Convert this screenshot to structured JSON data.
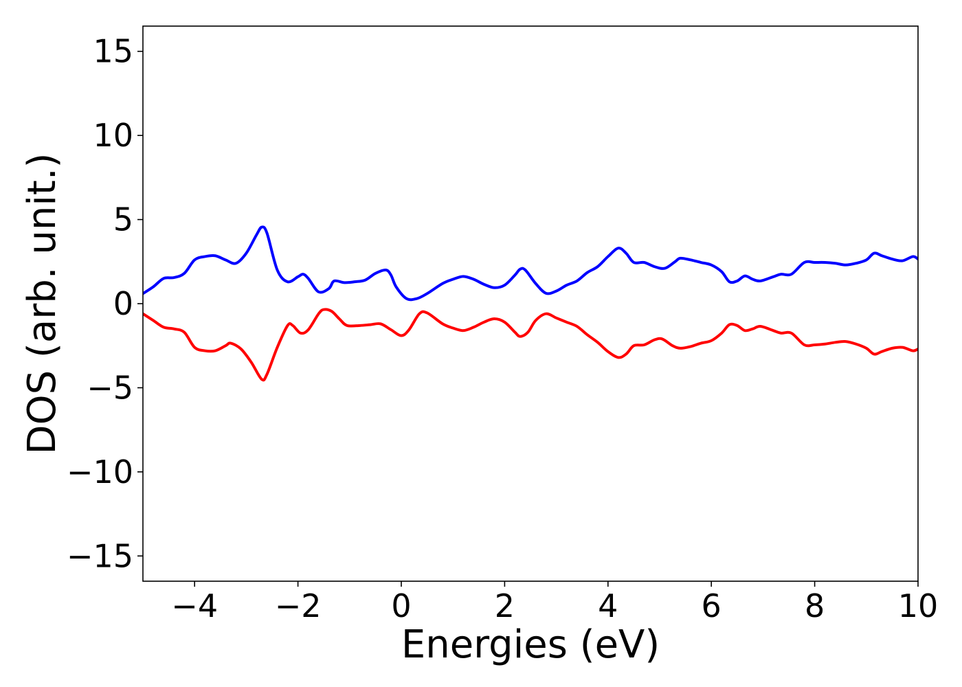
{
  "chart_data": {
    "type": "line",
    "title": "",
    "xlabel": "Energies (eV)",
    "ylabel": "DOS (arb. unit.)",
    "xlim": [
      -5,
      10
    ],
    "ylim": [
      -16.5,
      16.5
    ],
    "xticks": [
      -4,
      -2,
      0,
      2,
      4,
      6,
      8,
      10
    ],
    "xtick_labels": [
      "−4",
      "−2",
      "0",
      "2",
      "4",
      "6",
      "8",
      "10"
    ],
    "yticks": [
      15,
      10,
      5,
      0,
      -5,
      -10,
      -15
    ],
    "ytick_labels": [
      "15",
      "10",
      "5",
      "0",
      "−5",
      "−10",
      "−15"
    ],
    "grid": false,
    "legend": "none",
    "series": [
      {
        "color": "#0000ff",
        "points": [
          [
            -5.0,
            0.6
          ],
          [
            -4.8,
            1.0
          ],
          [
            -4.6,
            1.5
          ],
          [
            -4.4,
            1.55
          ],
          [
            -4.2,
            1.8
          ],
          [
            -4.0,
            2.6
          ],
          [
            -3.8,
            2.8
          ],
          [
            -3.6,
            2.85
          ],
          [
            -3.4,
            2.6
          ],
          [
            -3.2,
            2.4
          ],
          [
            -3.0,
            3.0
          ],
          [
            -2.8,
            4.1
          ],
          [
            -2.7,
            4.55
          ],
          [
            -2.6,
            4.2
          ],
          [
            -2.4,
            2.0
          ],
          [
            -2.2,
            1.3
          ],
          [
            -2.0,
            1.6
          ],
          [
            -1.9,
            1.75
          ],
          [
            -1.8,
            1.5
          ],
          [
            -1.6,
            0.7
          ],
          [
            -1.4,
            0.9
          ],
          [
            -1.3,
            1.35
          ],
          [
            -1.1,
            1.25
          ],
          [
            -0.9,
            1.3
          ],
          [
            -0.7,
            1.4
          ],
          [
            -0.5,
            1.8
          ],
          [
            -0.3,
            2.0
          ],
          [
            -0.2,
            1.7
          ],
          [
            -0.1,
            1.0
          ],
          [
            0.1,
            0.3
          ],
          [
            0.3,
            0.3
          ],
          [
            0.5,
            0.6
          ],
          [
            0.8,
            1.2
          ],
          [
            1.0,
            1.45
          ],
          [
            1.2,
            1.62
          ],
          [
            1.4,
            1.45
          ],
          [
            1.6,
            1.15
          ],
          [
            1.8,
            0.95
          ],
          [
            2.0,
            1.1
          ],
          [
            2.2,
            1.7
          ],
          [
            2.3,
            2.05
          ],
          [
            2.4,
            2.0
          ],
          [
            2.6,
            1.2
          ],
          [
            2.8,
            0.62
          ],
          [
            3.0,
            0.75
          ],
          [
            3.2,
            1.1
          ],
          [
            3.4,
            1.35
          ],
          [
            3.6,
            1.85
          ],
          [
            3.8,
            2.2
          ],
          [
            4.0,
            2.8
          ],
          [
            4.2,
            3.3
          ],
          [
            4.35,
            3.0
          ],
          [
            4.5,
            2.45
          ],
          [
            4.7,
            2.45
          ],
          [
            4.9,
            2.2
          ],
          [
            5.1,
            2.1
          ],
          [
            5.3,
            2.5
          ],
          [
            5.4,
            2.7
          ],
          [
            5.6,
            2.6
          ],
          [
            5.8,
            2.45
          ],
          [
            6.0,
            2.3
          ],
          [
            6.2,
            1.9
          ],
          [
            6.35,
            1.3
          ],
          [
            6.5,
            1.35
          ],
          [
            6.65,
            1.65
          ],
          [
            6.8,
            1.45
          ],
          [
            6.95,
            1.35
          ],
          [
            7.2,
            1.6
          ],
          [
            7.35,
            1.75
          ],
          [
            7.55,
            1.75
          ],
          [
            7.8,
            2.45
          ],
          [
            8.0,
            2.45
          ],
          [
            8.2,
            2.45
          ],
          [
            8.4,
            2.4
          ],
          [
            8.6,
            2.3
          ],
          [
            8.8,
            2.4
          ],
          [
            9.0,
            2.6
          ],
          [
            9.15,
            3.0
          ],
          [
            9.3,
            2.85
          ],
          [
            9.5,
            2.65
          ],
          [
            9.7,
            2.55
          ],
          [
            9.9,
            2.8
          ],
          [
            10.0,
            2.65
          ]
        ]
      },
      {
        "color": "#ff0000",
        "points": [
          [
            -5.0,
            -0.6
          ],
          [
            -4.8,
            -1.0
          ],
          [
            -4.6,
            -1.4
          ],
          [
            -4.4,
            -1.5
          ],
          [
            -4.2,
            -1.7
          ],
          [
            -4.0,
            -2.6
          ],
          [
            -3.8,
            -2.8
          ],
          [
            -3.6,
            -2.8
          ],
          [
            -3.4,
            -2.5
          ],
          [
            -3.3,
            -2.35
          ],
          [
            -3.1,
            -2.7
          ],
          [
            -2.9,
            -3.5
          ],
          [
            -2.7,
            -4.5
          ],
          [
            -2.6,
            -4.2
          ],
          [
            -2.4,
            -2.6
          ],
          [
            -2.2,
            -1.3
          ],
          [
            -2.1,
            -1.3
          ],
          [
            -1.95,
            -1.75
          ],
          [
            -1.8,
            -1.55
          ],
          [
            -1.6,
            -0.6
          ],
          [
            -1.5,
            -0.35
          ],
          [
            -1.35,
            -0.45
          ],
          [
            -1.2,
            -0.9
          ],
          [
            -1.05,
            -1.3
          ],
          [
            -0.8,
            -1.3
          ],
          [
            -0.6,
            -1.25
          ],
          [
            -0.4,
            -1.2
          ],
          [
            -0.2,
            -1.55
          ],
          [
            0.0,
            -1.9
          ],
          [
            0.15,
            -1.55
          ],
          [
            0.35,
            -0.6
          ],
          [
            0.5,
            -0.55
          ],
          [
            0.8,
            -1.2
          ],
          [
            1.0,
            -1.45
          ],
          [
            1.2,
            -1.6
          ],
          [
            1.4,
            -1.4
          ],
          [
            1.6,
            -1.1
          ],
          [
            1.8,
            -0.9
          ],
          [
            2.0,
            -1.1
          ],
          [
            2.2,
            -1.7
          ],
          [
            2.3,
            -1.95
          ],
          [
            2.45,
            -1.7
          ],
          [
            2.6,
            -1.0
          ],
          [
            2.8,
            -0.6
          ],
          [
            3.0,
            -0.85
          ],
          [
            3.2,
            -1.1
          ],
          [
            3.4,
            -1.35
          ],
          [
            3.6,
            -1.85
          ],
          [
            3.8,
            -2.3
          ],
          [
            4.0,
            -2.85
          ],
          [
            4.2,
            -3.2
          ],
          [
            4.35,
            -3.0
          ],
          [
            4.5,
            -2.5
          ],
          [
            4.7,
            -2.45
          ],
          [
            4.9,
            -2.15
          ],
          [
            5.05,
            -2.1
          ],
          [
            5.25,
            -2.5
          ],
          [
            5.4,
            -2.65
          ],
          [
            5.6,
            -2.55
          ],
          [
            5.8,
            -2.35
          ],
          [
            6.0,
            -2.2
          ],
          [
            6.2,
            -1.75
          ],
          [
            6.35,
            -1.25
          ],
          [
            6.5,
            -1.3
          ],
          [
            6.65,
            -1.6
          ],
          [
            6.8,
            -1.5
          ],
          [
            6.95,
            -1.35
          ],
          [
            7.2,
            -1.6
          ],
          [
            7.35,
            -1.75
          ],
          [
            7.55,
            -1.75
          ],
          [
            7.8,
            -2.45
          ],
          [
            8.0,
            -2.45
          ],
          [
            8.2,
            -2.4
          ],
          [
            8.4,
            -2.3
          ],
          [
            8.6,
            -2.25
          ],
          [
            8.8,
            -2.4
          ],
          [
            9.0,
            -2.65
          ],
          [
            9.15,
            -3.0
          ],
          [
            9.3,
            -2.85
          ],
          [
            9.5,
            -2.65
          ],
          [
            9.7,
            -2.6
          ],
          [
            9.9,
            -2.8
          ],
          [
            10.0,
            -2.7
          ]
        ]
      }
    ]
  }
}
